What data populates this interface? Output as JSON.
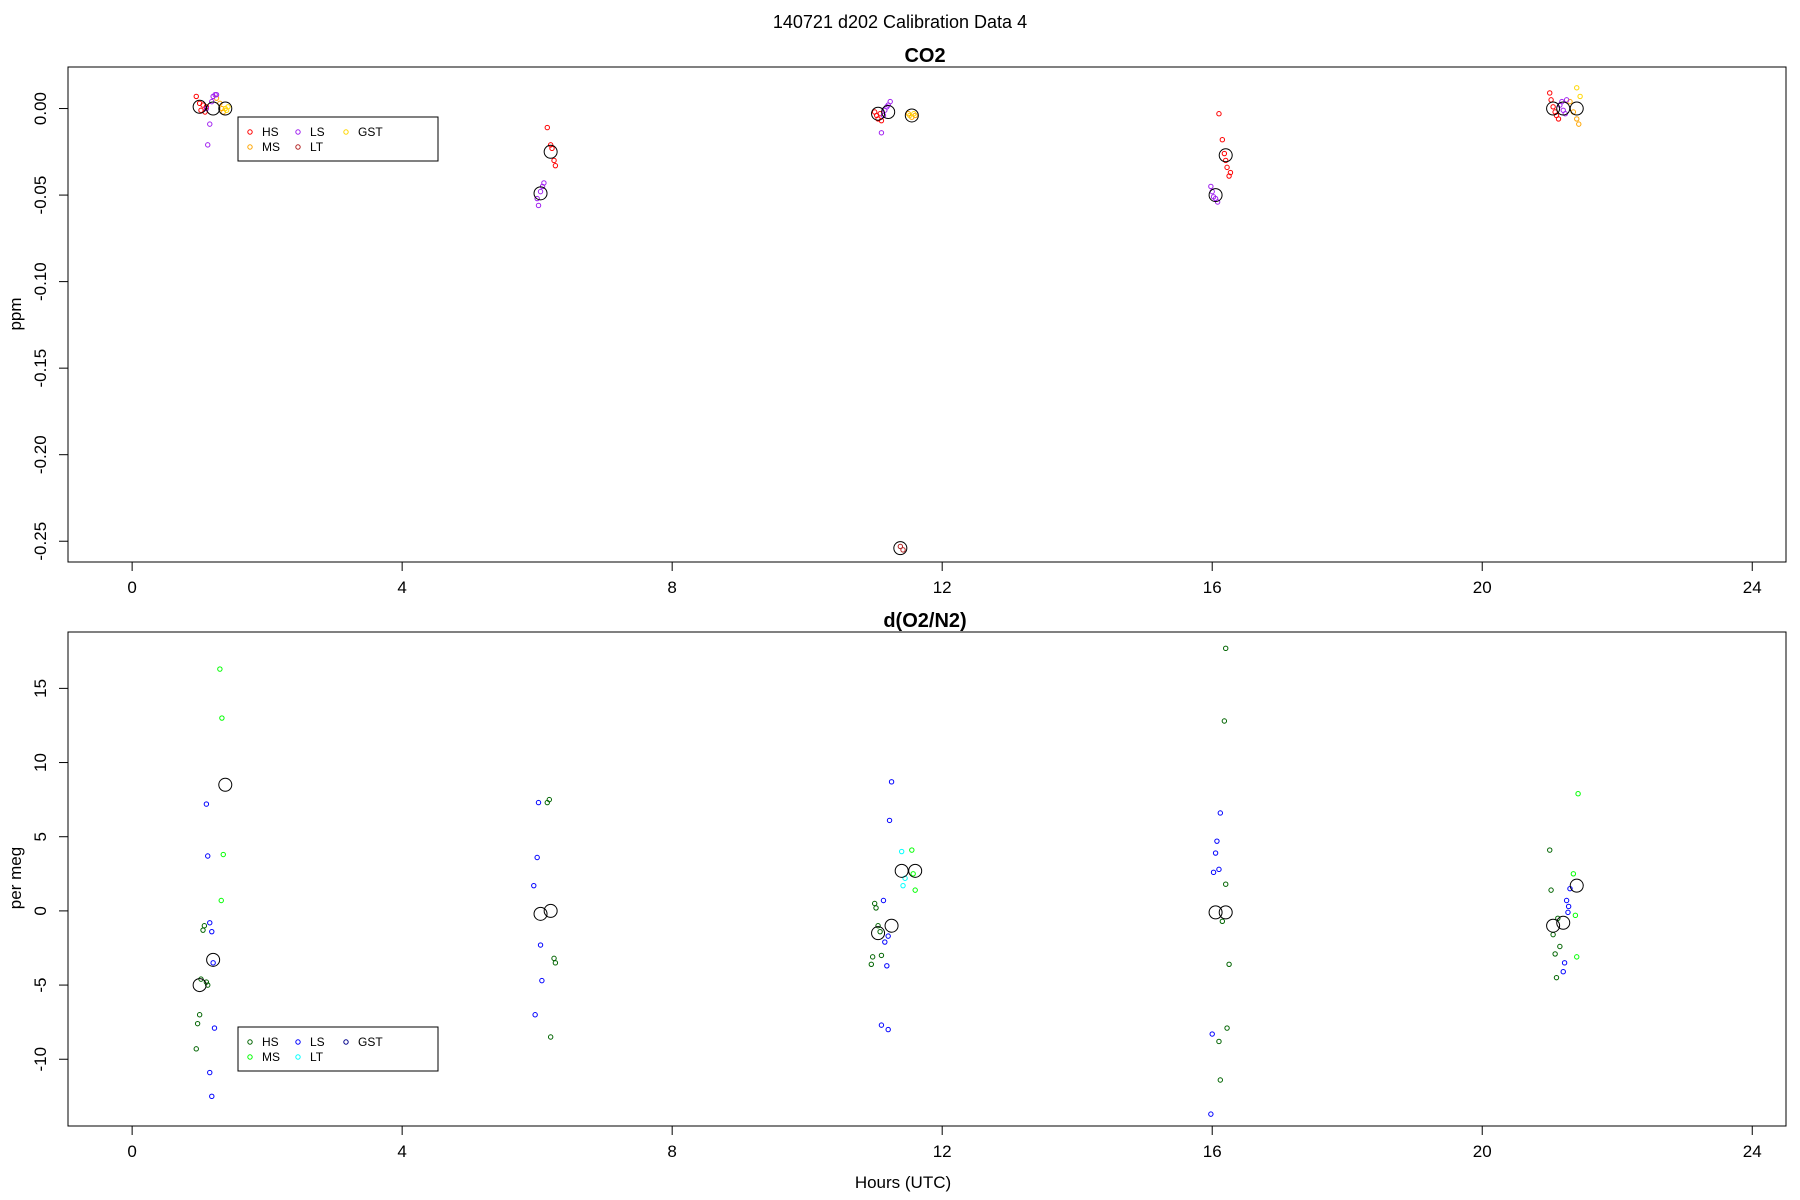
{
  "figure": {
    "suptitle": "140721   d202   Calibration Data 4",
    "xlabel": "Hours (UTC)"
  },
  "chart_data": [
    {
      "type": "scatter",
      "title": "CO2",
      "xlabel": "",
      "ylabel": "ppm",
      "xlim": [
        -0.95,
        24.5
      ],
      "ylim": [
        -0.262,
        0.024
      ],
      "xticks": [
        0,
        4,
        8,
        12,
        16,
        20,
        24
      ],
      "yticks": [
        0.0,
        -0.05,
        -0.1,
        -0.15,
        -0.2,
        -0.25
      ],
      "ytick_labels": [
        "0.00",
        "-0.05",
        "-0.10",
        "-0.15",
        "-0.20",
        "-0.25"
      ],
      "grid": false,
      "legend": {
        "placement": "top-left",
        "entries": [
          {
            "label": "HS",
            "color": "#ff0000",
            "marker": "circle"
          },
          {
            "label": "MS",
            "color": "#ffa500",
            "marker": "circle"
          },
          {
            "label": "LS",
            "color": "#a020f0",
            "marker": "circle"
          },
          {
            "label": "LT",
            "color": "#b22222",
            "marker": "circle"
          },
          {
            "label": "GST",
            "color": "#ffd700",
            "marker": "circle"
          }
        ]
      },
      "series": [
        {
          "name": "HS",
          "color": "#ff0000",
          "marker": "circle",
          "points": [
            [
              0.95,
              0.007
            ],
            [
              1.0,
              0.003
            ],
            [
              1.02,
              -0.001
            ],
            [
              1.05,
              0.002
            ],
            [
              1.08,
              -0.002
            ],
            [
              1.1,
              0.001
            ],
            [
              6.15,
              -0.011
            ],
            [
              6.2,
              -0.021
            ],
            [
              6.22,
              -0.023
            ],
            [
              6.25,
              -0.03
            ],
            [
              6.27,
              -0.033
            ],
            [
              11.0,
              -0.002
            ],
            [
              11.03,
              -0.004
            ],
            [
              11.05,
              -0.006
            ],
            [
              11.08,
              -0.003
            ],
            [
              11.1,
              -0.007
            ],
            [
              16.1,
              -0.003
            ],
            [
              16.15,
              -0.018
            ],
            [
              16.18,
              -0.026
            ],
            [
              16.2,
              -0.03
            ],
            [
              16.22,
              -0.034
            ],
            [
              16.25,
              -0.039
            ],
            [
              16.27,
              -0.037
            ],
            [
              21.0,
              0.009
            ],
            [
              21.02,
              0.005
            ],
            [
              21.05,
              0.001
            ],
            [
              21.08,
              -0.002
            ],
            [
              21.1,
              -0.004
            ],
            [
              21.13,
              -0.006
            ]
          ]
        },
        {
          "name": "MS",
          "color": "#ffa500",
          "marker": "circle",
          "points": [
            [
              1.25,
              0.006
            ],
            [
              1.3,
              0.003
            ],
            [
              1.33,
              0.0
            ],
            [
              1.35,
              -0.002
            ],
            [
              11.5,
              -0.003
            ],
            [
              11.55,
              -0.005
            ],
            [
              11.6,
              -0.004
            ],
            [
              21.3,
              0.004
            ],
            [
              21.35,
              -0.002
            ],
            [
              21.4,
              -0.006
            ],
            [
              21.43,
              -0.009
            ]
          ]
        },
        {
          "name": "LS",
          "color": "#a020f0",
          "marker": "circle",
          "points": [
            [
              1.1,
              0.0
            ],
            [
              1.12,
              -0.021
            ],
            [
              1.15,
              -0.009
            ],
            [
              1.18,
              0.004
            ],
            [
              1.2,
              0.007
            ],
            [
              1.23,
              0.008
            ],
            [
              1.25,
              0.008
            ],
            [
              6.0,
              -0.052
            ],
            [
              6.02,
              -0.056
            ],
            [
              6.05,
              -0.048
            ],
            [
              6.08,
              -0.045
            ],
            [
              6.1,
              -0.043
            ],
            [
              11.1,
              -0.014
            ],
            [
              11.13,
              -0.004
            ],
            [
              11.15,
              -0.001
            ],
            [
              11.18,
              0.001
            ],
            [
              11.2,
              0.002
            ],
            [
              11.23,
              0.004
            ],
            [
              15.98,
              -0.045
            ],
            [
              16.0,
              -0.048
            ],
            [
              16.02,
              -0.051
            ],
            [
              16.05,
              -0.052
            ],
            [
              16.08,
              -0.054
            ],
            [
              21.15,
              0.002
            ],
            [
              21.18,
              0.004
            ],
            [
              21.2,
              -0.001
            ],
            [
              21.23,
              -0.003
            ],
            [
              21.25,
              0.005
            ]
          ]
        },
        {
          "name": "LT",
          "color": "#b22222",
          "marker": "circle",
          "points": [
            [
              11.38,
              -0.253
            ],
            [
              11.42,
              -0.255
            ]
          ]
        },
        {
          "name": "GST",
          "color": "#ffd700",
          "marker": "circle",
          "points": [
            [
              1.38,
              0.0
            ],
            [
              1.4,
              -0.001
            ],
            [
              1.42,
              0.001
            ],
            [
              11.52,
              -0.004
            ],
            [
              11.58,
              -0.003
            ],
            [
              21.4,
              0.012
            ],
            [
              21.45,
              0.007
            ]
          ]
        },
        {
          "name": "",
          "color": "#000000",
          "marker": "large-circle",
          "points": [
            [
              1.0,
              0.001
            ],
            [
              1.2,
              0.0
            ],
            [
              1.38,
              0.0
            ],
            [
              6.05,
              -0.049
            ],
            [
              6.2,
              -0.025
            ],
            [
              11.05,
              -0.003
            ],
            [
              11.2,
              -0.002
            ],
            [
              11.38,
              -0.254
            ],
            [
              11.55,
              -0.004
            ],
            [
              16.05,
              -0.05
            ],
            [
              16.2,
              -0.027
            ],
            [
              21.05,
              0.0
            ],
            [
              21.2,
              0.0
            ],
            [
              21.4,
              0.0
            ]
          ]
        }
      ]
    },
    {
      "type": "scatter",
      "title": "d(O2/N2)",
      "xlabel": "Hours (UTC)",
      "ylabel": "per meg",
      "xlim": [
        -0.95,
        24.5
      ],
      "ylim": [
        -14.5,
        18.8
      ],
      "xticks": [
        0,
        4,
        8,
        12,
        16,
        20,
        24
      ],
      "yticks": [
        -10,
        -5,
        0,
        5,
        10,
        15
      ],
      "ytick_labels": [
        "-10",
        "-5",
        "0",
        "5",
        "10",
        "15"
      ],
      "grid": false,
      "legend": {
        "placement": "bottom-left",
        "entries": [
          {
            "label": "HS",
            "color": "#006400",
            "marker": "circle"
          },
          {
            "label": "MS",
            "color": "#00ff00",
            "marker": "circle"
          },
          {
            "label": "LS",
            "color": "#0000ff",
            "marker": "circle"
          },
          {
            "label": "LT",
            "color": "#00ffff",
            "marker": "circle"
          },
          {
            "label": "GST",
            "color": "#00008b",
            "marker": "circle"
          }
        ]
      },
      "series": [
        {
          "name": "HS",
          "color": "#006400",
          "marker": "circle",
          "points": [
            [
              0.95,
              -9.3
            ],
            [
              0.97,
              -7.6
            ],
            [
              1.0,
              -7.0
            ],
            [
              1.02,
              -4.6
            ],
            [
              1.05,
              -1.3
            ],
            [
              1.07,
              -1.0
            ],
            [
              1.1,
              -4.8
            ],
            [
              1.12,
              -5.0
            ],
            [
              6.15,
              7.3
            ],
            [
              6.18,
              7.5
            ],
            [
              6.2,
              -8.5
            ],
            [
              6.25,
              -3.2
            ],
            [
              6.27,
              -3.5
            ],
            [
              10.95,
              -3.6
            ],
            [
              10.97,
              -3.1
            ],
            [
              11.0,
              0.5
            ],
            [
              11.02,
              0.2
            ],
            [
              11.05,
              -1.0
            ],
            [
              11.08,
              -1.4
            ],
            [
              11.1,
              -3.0
            ],
            [
              16.1,
              -8.8
            ],
            [
              16.12,
              -11.4
            ],
            [
              16.15,
              -0.7
            ],
            [
              16.18,
              12.8
            ],
            [
              16.2,
              1.8
            ],
            [
              16.22,
              -7.9
            ],
            [
              16.25,
              -3.6
            ],
            [
              16.2,
              17.7
            ],
            [
              21.0,
              4.1
            ],
            [
              21.02,
              1.4
            ],
            [
              21.05,
              -1.6
            ],
            [
              21.08,
              -2.9
            ],
            [
              21.1,
              -4.5
            ],
            [
              21.12,
              -0.5
            ],
            [
              21.15,
              -2.4
            ]
          ]
        },
        {
          "name": "MS",
          "color": "#00ff00",
          "marker": "circle",
          "points": [
            [
              1.3,
              16.3
            ],
            [
              1.33,
              13.0
            ],
            [
              1.35,
              3.8
            ],
            [
              1.32,
              0.7
            ],
            [
              11.55,
              4.1
            ],
            [
              11.57,
              2.5
            ],
            [
              11.6,
              1.4
            ],
            [
              21.35,
              2.5
            ],
            [
              21.38,
              -0.3
            ],
            [
              21.4,
              -3.1
            ],
            [
              21.42,
              7.9
            ]
          ]
        },
        {
          "name": "LS",
          "color": "#0000ff",
          "marker": "circle",
          "points": [
            [
              1.1,
              7.2
            ],
            [
              1.12,
              3.7
            ],
            [
              1.15,
              -0.8
            ],
            [
              1.18,
              -1.4
            ],
            [
              1.2,
              -3.5
            ],
            [
              1.22,
              -7.9
            ],
            [
              1.15,
              -10.9
            ],
            [
              1.18,
              -12.5
            ],
            [
              5.95,
              1.7
            ],
            [
              5.97,
              -7.0
            ],
            [
              6.0,
              3.6
            ],
            [
              6.02,
              7.3
            ],
            [
              6.05,
              -2.3
            ],
            [
              6.07,
              -4.7
            ],
            [
              11.1,
              -7.7
            ],
            [
              11.13,
              0.7
            ],
            [
              11.15,
              -2.1
            ],
            [
              11.18,
              -3.7
            ],
            [
              11.2,
              -8.0
            ],
            [
              11.22,
              6.1
            ],
            [
              11.25,
              8.7
            ],
            [
              11.2,
              -1.7
            ],
            [
              15.98,
              -13.7
            ],
            [
              16.0,
              -8.3
            ],
            [
              16.02,
              2.6
            ],
            [
              16.05,
              3.9
            ],
            [
              16.07,
              4.7
            ],
            [
              16.1,
              2.8
            ],
            [
              16.12,
              6.6
            ],
            [
              21.2,
              -4.1
            ],
            [
              21.22,
              -3.5
            ],
            [
              21.25,
              0.7
            ],
            [
              21.27,
              -0.1
            ],
            [
              21.3,
              1.5
            ],
            [
              21.28,
              0.3
            ]
          ]
        },
        {
          "name": "LT",
          "color": "#00ffff",
          "marker": "circle",
          "points": [
            [
              11.4,
              4.0
            ],
            [
              11.42,
              1.7
            ],
            [
              11.45,
              2.2
            ]
          ]
        },
        {
          "name": "GST",
          "color": "#00008b",
          "marker": "circle",
          "points": []
        },
        {
          "name": "",
          "color": "#000000",
          "marker": "large-circle",
          "points": [
            [
              1.0,
              -5.0
            ],
            [
              1.2,
              -3.3
            ],
            [
              1.38,
              8.5
            ],
            [
              6.05,
              -0.2
            ],
            [
              6.2,
              0.0
            ],
            [
              11.05,
              -1.5
            ],
            [
              11.25,
              -1.0
            ],
            [
              11.4,
              2.7
            ],
            [
              11.6,
              2.7
            ],
            [
              16.05,
              -0.1
            ],
            [
              16.2,
              -0.1
            ],
            [
              21.05,
              -1.0
            ],
            [
              21.2,
              -0.8
            ],
            [
              21.4,
              1.7
            ]
          ]
        }
      ]
    }
  ]
}
